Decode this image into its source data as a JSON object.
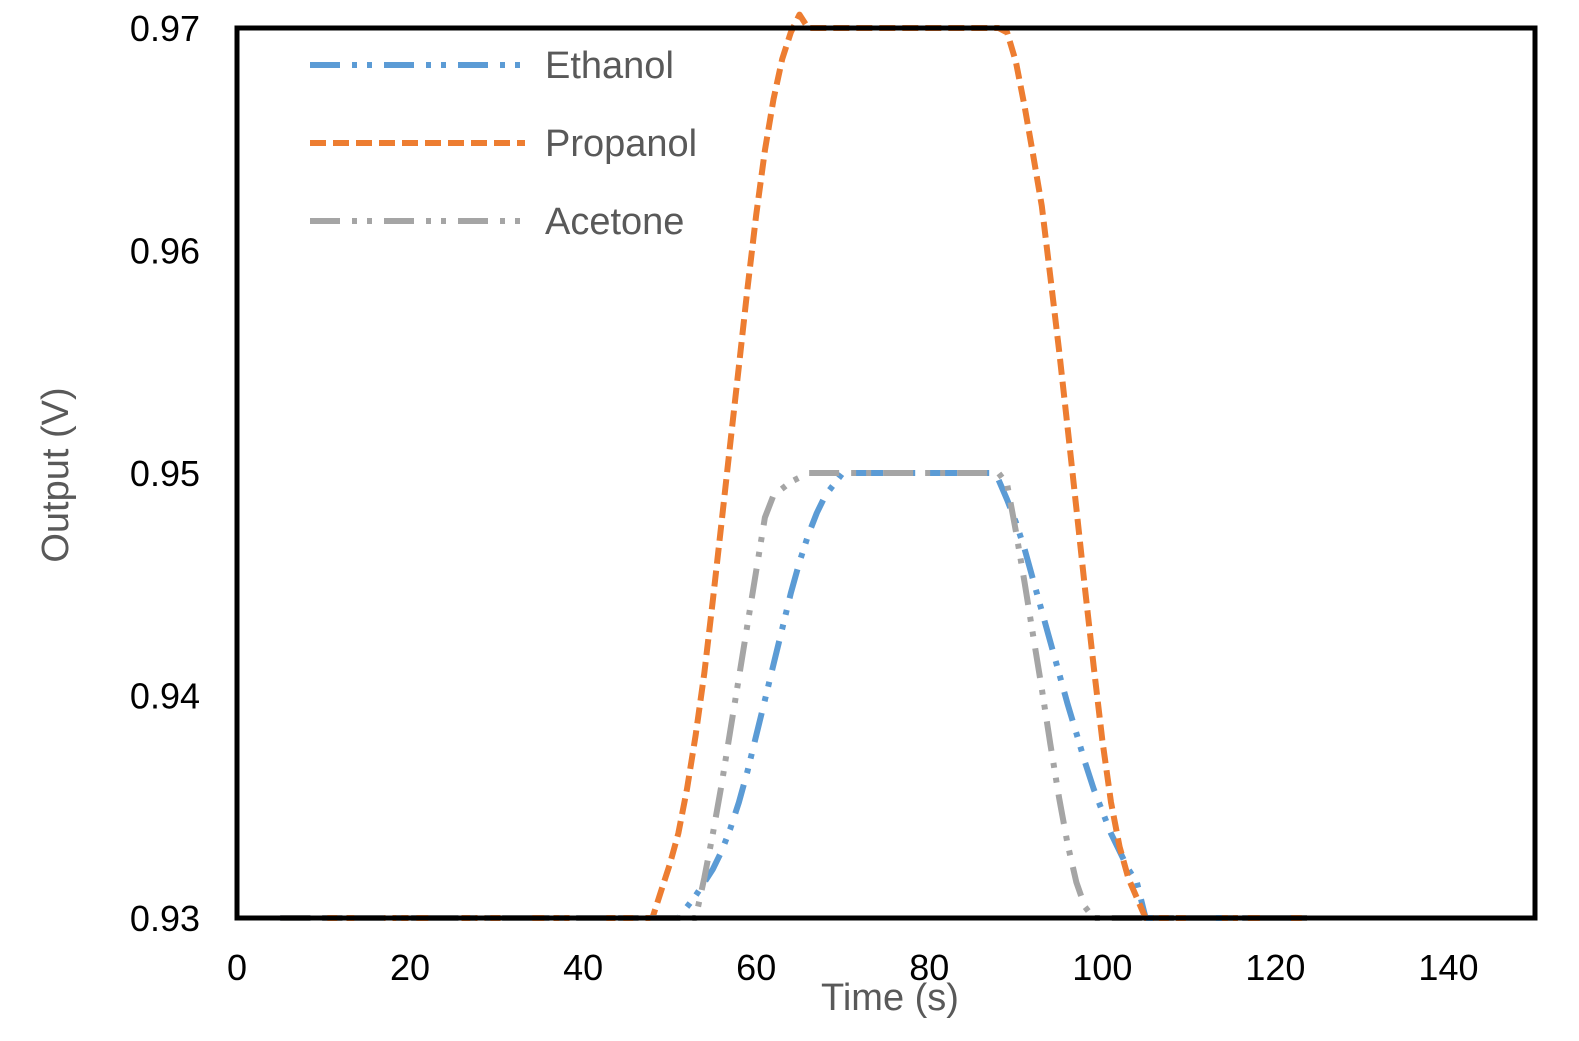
{
  "chart_data": {
    "type": "line",
    "title": "",
    "xlabel": "Time (s)",
    "ylabel": "Output (V)",
    "xlim": [
      0,
      150
    ],
    "ylim": [
      0.93,
      0.97
    ],
    "x_ticks": [
      0,
      20,
      40,
      60,
      80,
      100,
      120,
      140
    ],
    "y_ticks": [
      0.93,
      0.94,
      0.95,
      0.96,
      0.97
    ],
    "x_tick_labels": [
      "0",
      "20",
      "40",
      "60",
      "80",
      "100",
      "120",
      "140"
    ],
    "y_tick_labels": [
      "0.93",
      "0.94",
      "0.95",
      "0.96",
      "0.97"
    ],
    "grid": false,
    "legend_position": "top-left",
    "series": [
      {
        "name": "Ethanol",
        "color": "#5B9BD5",
        "line_style": "long-dash-dot-dot",
        "x": [
          5,
          50,
          51,
          52,
          53,
          54,
          55,
          56,
          57,
          58,
          59,
          60,
          61,
          62,
          63,
          64,
          65,
          66,
          67,
          68,
          70,
          75,
          80,
          85,
          87,
          88,
          89,
          90,
          91,
          92,
          93,
          94,
          95,
          96,
          97,
          98,
          99,
          100,
          101,
          102,
          103,
          104,
          105,
          115,
          124
        ],
        "y": [
          0.93,
          0.93,
          0.93,
          0.9305,
          0.931,
          0.9316,
          0.9322,
          0.933,
          0.934,
          0.9352,
          0.9366,
          0.9382,
          0.9398,
          0.9414,
          0.943,
          0.9446,
          0.946,
          0.9472,
          0.9482,
          0.949,
          0.95,
          0.95,
          0.95,
          0.95,
          0.95,
          0.9497,
          0.9488,
          0.9478,
          0.9466,
          0.9452,
          0.9438,
          0.9424,
          0.941,
          0.9396,
          0.9383,
          0.937,
          0.9358,
          0.9348,
          0.9338,
          0.933,
          0.9322,
          0.9316,
          0.93,
          0.93,
          0.93
        ]
      },
      {
        "name": "Propanol",
        "color": "#ED7D31",
        "line_style": "dashed",
        "x": [
          10,
          47,
          48,
          49,
          50,
          51,
          52,
          53,
          54,
          55,
          56,
          57,
          58,
          59,
          60,
          61,
          62,
          63,
          64,
          65,
          66,
          68,
          70,
          75,
          80,
          85,
          88,
          89,
          90,
          91,
          92,
          93,
          94,
          95,
          96,
          97,
          98,
          99,
          100,
          101,
          102,
          103,
          104,
          105,
          115,
          124
        ],
        "y": [
          0.93,
          0.93,
          0.93,
          0.9312,
          0.9324,
          0.9338,
          0.9358,
          0.9382,
          0.941,
          0.9443,
          0.9478,
          0.9513,
          0.9548,
          0.9583,
          0.9616,
          0.9645,
          0.9668,
          0.9686,
          0.9698,
          0.9706,
          0.97,
          0.97,
          0.97,
          0.97,
          0.97,
          0.97,
          0.97,
          0.9698,
          0.9685,
          0.9665,
          0.9643,
          0.962,
          0.9588,
          0.9555,
          0.952,
          0.9484,
          0.9448,
          0.9413,
          0.938,
          0.9352,
          0.9332,
          0.9318,
          0.9309,
          0.93,
          0.93,
          0.93
        ]
      },
      {
        "name": "Acetone",
        "color": "#A5A5A5",
        "line_style": "long-dash-dot-dot",
        "x": [
          5,
          52,
          53,
          54,
          55,
          56,
          57,
          58,
          59,
          60,
          61,
          62,
          63,
          64,
          65,
          66,
          67,
          68,
          70,
          75,
          80,
          85,
          87,
          88,
          89,
          90,
          91,
          92,
          93,
          94,
          95,
          96,
          97,
          98,
          99,
          100,
          101,
          102,
          103,
          104,
          114,
          124
        ],
        "y": [
          0.93,
          0.93,
          0.93,
          0.9318,
          0.9338,
          0.936,
          0.9384,
          0.9408,
          0.9432,
          0.9456,
          0.948,
          0.949,
          0.9493,
          0.9496,
          0.9498,
          0.95,
          0.95,
          0.95,
          0.95,
          0.95,
          0.95,
          0.95,
          0.95,
          0.95,
          0.9495,
          0.9474,
          0.9451,
          0.9427,
          0.9403,
          0.9378,
          0.9354,
          0.9333,
          0.9316,
          0.9305,
          0.93,
          0.93,
          0.93,
          0.93,
          0.93,
          0.93,
          0.93,
          0.93
        ]
      }
    ]
  }
}
